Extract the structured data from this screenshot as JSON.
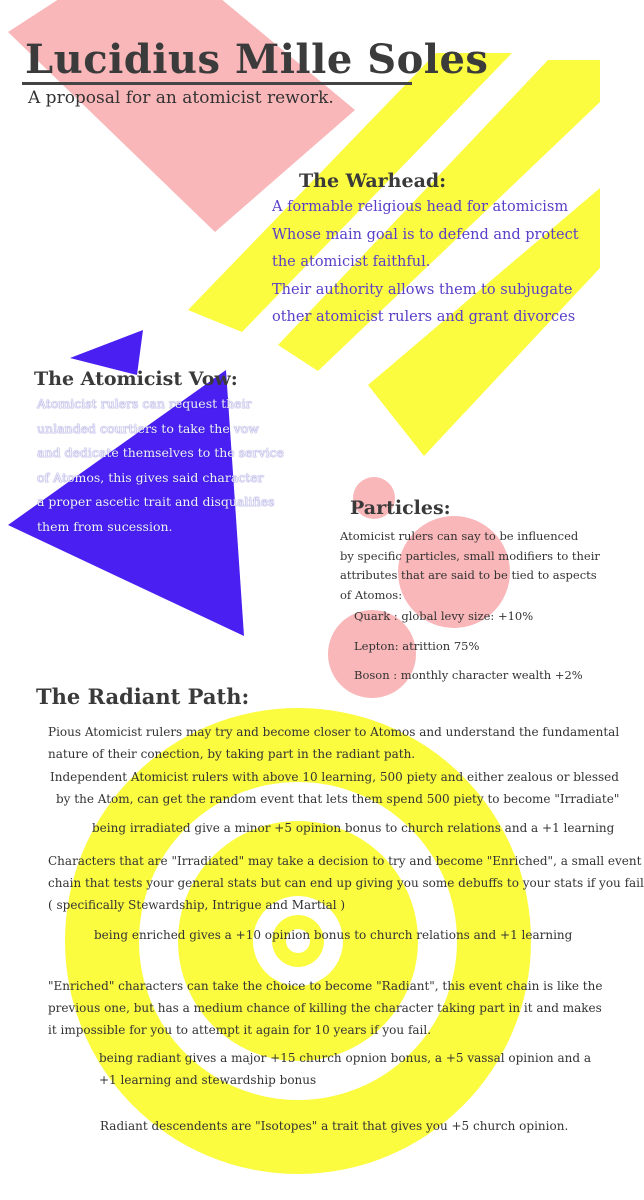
{
  "header": {
    "title": "Lucidius Mille Soles",
    "subtitle": "A proposal for an atomicist rework."
  },
  "warhead": {
    "heading": "The Warhead:",
    "lines": [
      "A formable religious head for atomicism",
      "Whose main goal is to defend and protect",
      "the atomicist faithful.",
      "Their authority allows them to subjugate",
      "other atomicist rulers and grant divorces"
    ]
  },
  "vow": {
    "heading": "The Atomicist Vow:",
    "lines": [
      "Atomicist rulers can request their",
      "unlanded courtiers to take the vow",
      "and dedicate themselves to the service",
      "of Atomos, this gives said character",
      "a proper ascetic trait and disqualifies",
      "them from sucession."
    ]
  },
  "particles": {
    "heading": "Particles:",
    "lines": [
      "Atomicist rulers can say to be influenced",
      "by specific particles, small modifiers to their",
      "attributes that are said to be tied to aspects",
      "of Atomos:"
    ],
    "quark": "Quark :  global levy size: +10%",
    "lepton": "Lepton: atrittion 75%",
    "boson": "Boson : monthly character wealth +2%"
  },
  "radiant": {
    "heading": "The Radiant Path:",
    "p1a": "Pious Atomicist rulers may try and become closer to Atomos and understand the fundamental",
    "p1b": "nature of their conection, by taking part in the radiant path.",
    "p2a": "Independent Atomicist rulers with above 10 learning, 500 piety and either zealous or blessed",
    "p2b": "by the Atom, can get the random event that lets them spend 500 piety to become \"Irradiate\"",
    "b1": "being irradiated give a minor +5 opinion bonus to church relations and a +1 learning",
    "p3a": "Characters that are \"Irradiated\" may take a decision to try and become \"Enriched\", a small event",
    "p3b": "chain that tests your general stats but can end up giving you some debuffs to your stats if you fail",
    "p3c": "( specifically Stewardship, Intrigue and Martial )",
    "b2": "being enriched gives a +10 opinion bonus to church relations and +1 learning",
    "p4a": "\"Enriched\" characters can take the choice to become \"Radiant\", this event chain is like the",
    "p4b": "previous one, but has a medium chance of killing the character taking part in it and makes",
    "p4c": "it impossible for you to attempt it again for 10 years if you fail.",
    "b3a": "being radiant gives a major +15 church opnion bonus, a +5 vassal opinion and a",
    "b3b": "+1 learning and stewardship bonus",
    "b4": "Radiant descendents are \"Isotopes\" a trait that gives you +5 church opinion."
  },
  "colors": {
    "pink": "#f9b7b9",
    "yellow": "#fbfc3f",
    "purple": "#4a1ff2"
  }
}
